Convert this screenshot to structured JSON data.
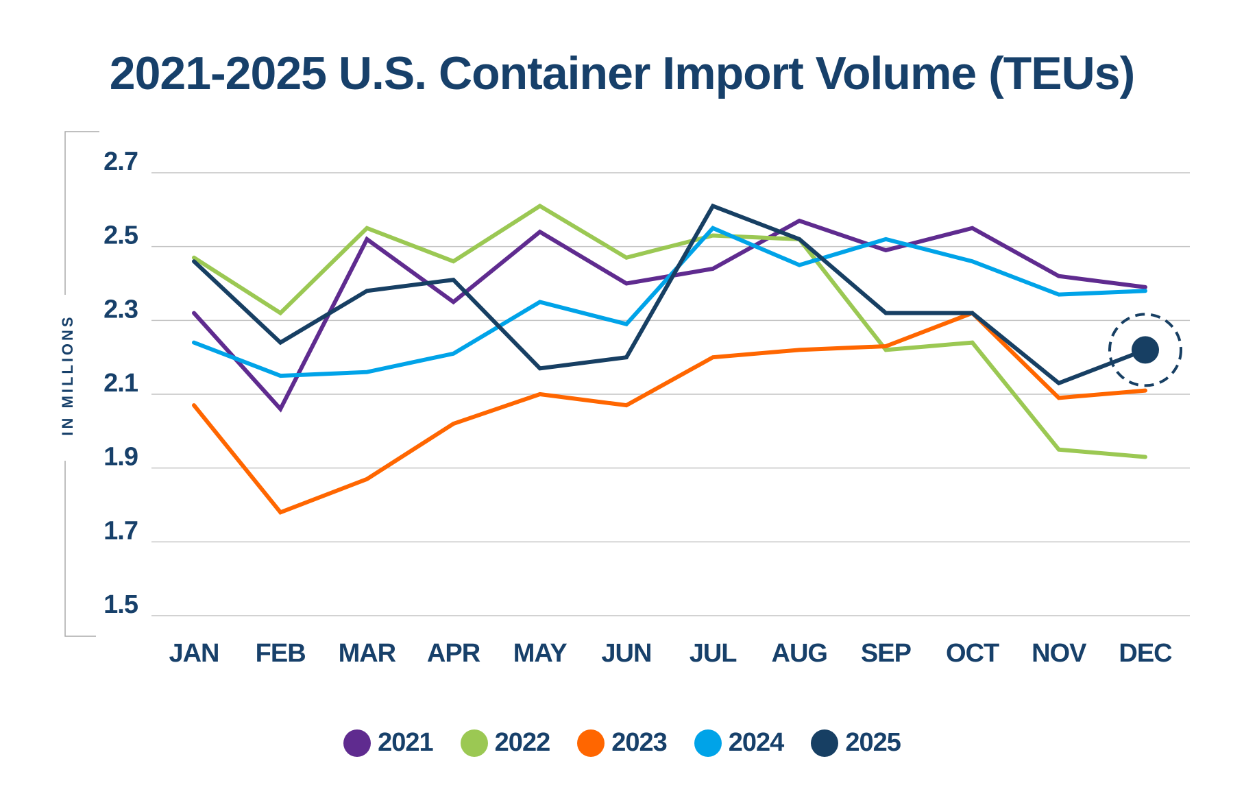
{
  "chart_data": {
    "type": "line",
    "title": "2021-2025 U.S. Container Import Volume (TEUs)",
    "xlabel": "",
    "ylabel": "IN MILLIONS",
    "ylim": [
      1.5,
      2.7
    ],
    "yticks": [
      "2.7",
      "2.5",
      "2.3",
      "2.1",
      "1.9",
      "1.7",
      "1.5"
    ],
    "grid": true,
    "legend": "bottom",
    "categories": [
      "JAN",
      "FEB",
      "MAR",
      "APR",
      "MAY",
      "JUN",
      "JUL",
      "AUG",
      "SEP",
      "OCT",
      "NOV",
      "DEC"
    ],
    "series": [
      {
        "name": "2021",
        "color": "#5f2b8f",
        "values": [
          2.32,
          2.06,
          2.52,
          2.35,
          2.54,
          2.4,
          2.44,
          2.57,
          2.49,
          2.55,
          2.42,
          2.39
        ]
      },
      {
        "name": "2022",
        "color": "#9bc853",
        "values": [
          2.47,
          2.32,
          2.55,
          2.46,
          2.61,
          2.47,
          2.53,
          2.52,
          2.22,
          2.24,
          1.95,
          1.93
        ]
      },
      {
        "name": "2023",
        "color": "#ff6600",
        "values": [
          2.07,
          1.78,
          1.87,
          2.02,
          2.1,
          2.07,
          2.2,
          2.22,
          2.23,
          2.32,
          2.09,
          2.11
        ]
      },
      {
        "name": "2024",
        "color": "#00a3e8",
        "values": [
          2.24,
          2.15,
          2.16,
          2.21,
          2.35,
          2.29,
          2.55,
          2.45,
          2.52,
          2.46,
          2.37,
          2.38
        ]
      },
      {
        "name": "2025",
        "color": "#173f63",
        "values": [
          2.46,
          2.24,
          2.38,
          2.41,
          2.17,
          2.2,
          2.61,
          2.52,
          2.32,
          2.32,
          2.13,
          2.22
        ]
      }
    ],
    "highlight": {
      "series": "2025",
      "category": "DEC"
    }
  }
}
